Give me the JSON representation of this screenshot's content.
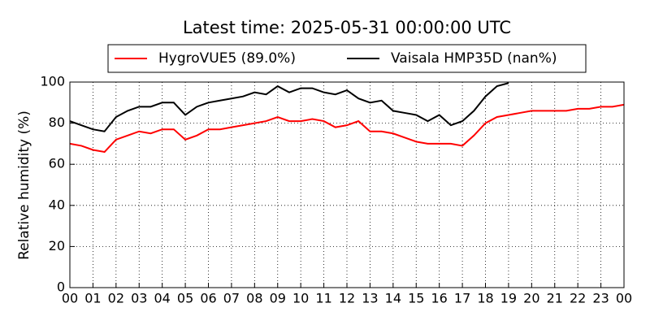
{
  "chart_data": {
    "type": "line",
    "title": "Latest time: 2025-05-31 00:00:00 UTC",
    "ylabel": "Relative humidity (%)",
    "x": [
      0,
      0.5,
      1,
      1.5,
      2,
      2.5,
      3,
      3.5,
      4,
      4.5,
      5,
      5.5,
      6,
      6.5,
      7,
      7.5,
      8,
      8.5,
      9,
      9.5,
      10,
      10.5,
      11,
      11.5,
      12,
      12.5,
      13,
      13.5,
      14,
      14.5,
      15,
      15.5,
      16,
      16.5,
      17,
      17.5,
      18,
      18.5,
      19,
      19.5,
      20,
      20.5,
      21,
      21.5,
      22,
      22.5,
      23,
      23.5,
      24
    ],
    "series": [
      {
        "name": "HygroVUE5 (89.0%)",
        "color": "#ff0000",
        "values": [
          70,
          69,
          67,
          66,
          72,
          74,
          76,
          75,
          77,
          77,
          72,
          74,
          77,
          77,
          78,
          79,
          80,
          81,
          83,
          81,
          81,
          82,
          81,
          78,
          79,
          81,
          76,
          76,
          75,
          73,
          71,
          70,
          70,
          70,
          69,
          74,
          80,
          83,
          84,
          85,
          86,
          86,
          86,
          86,
          87,
          87,
          88,
          88,
          89
        ]
      },
      {
        "name": "Vaisala HMP35D (nan%)",
        "color": "#000000",
        "values": [
          81,
          79,
          77,
          76,
          83,
          86,
          88,
          88,
          90,
          90,
          84,
          88,
          90,
          91,
          92,
          93,
          95,
          94,
          98,
          95,
          97,
          97,
          95,
          94,
          96,
          92,
          90,
          91,
          86,
          85,
          84,
          81,
          84,
          79,
          81,
          86,
          93,
          98,
          99.5,
          null,
          null,
          null,
          null,
          null,
          null,
          null,
          null,
          null,
          null
        ]
      }
    ],
    "xlim": [
      0,
      24
    ],
    "xticks": [
      {
        "value": 0,
        "label": "00"
      },
      {
        "value": 1,
        "label": "01"
      },
      {
        "value": 2,
        "label": "02"
      },
      {
        "value": 3,
        "label": "03"
      },
      {
        "value": 4,
        "label": "04"
      },
      {
        "value": 5,
        "label": "05"
      },
      {
        "value": 6,
        "label": "06"
      },
      {
        "value": 7,
        "label": "07"
      },
      {
        "value": 8,
        "label": "08"
      },
      {
        "value": 9,
        "label": "09"
      },
      10,
      11,
      12,
      13,
      14,
      15,
      16,
      17,
      18,
      19,
      20,
      21,
      22,
      23,
      {
        "value": 24,
        "label": "00"
      }
    ],
    "ylim": [
      0,
      100
    ],
    "yticks": [
      0,
      20,
      40,
      60,
      80,
      100
    ],
    "grid": true
  }
}
